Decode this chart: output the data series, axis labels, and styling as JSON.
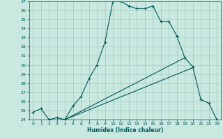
{
  "xlabel": "Humidex (Indice chaleur)",
  "background_color": "#c8e8e0",
  "grid_color": "#a0c8c0",
  "line_color": "#005858",
  "xlim": [
    -0.5,
    23.5
  ],
  "ylim": [
    24,
    37
  ],
  "xticks": [
    0,
    1,
    2,
    3,
    4,
    5,
    6,
    7,
    8,
    9,
    10,
    11,
    12,
    13,
    14,
    15,
    16,
    17,
    18,
    19,
    20,
    21,
    22,
    23
  ],
  "yticks": [
    24,
    25,
    26,
    27,
    28,
    29,
    30,
    31,
    32,
    33,
    34,
    35,
    36,
    37
  ],
  "main_curve_x": [
    0,
    1,
    2,
    3,
    4,
    5,
    6,
    7,
    8,
    9,
    10,
    11,
    12,
    13,
    14,
    15,
    16,
    17,
    18,
    19,
    20,
    21,
    22,
    23
  ],
  "main_curve_y": [
    24.8,
    25.2,
    24.0,
    24.2,
    24.0,
    25.5,
    26.5,
    28.5,
    30.0,
    32.5,
    37.0,
    37.0,
    36.5,
    36.2,
    36.2,
    36.5,
    34.8,
    34.8,
    33.2,
    30.8,
    29.8,
    26.2,
    25.8,
    24.0
  ],
  "diag_line1_x": [
    4,
    19
  ],
  "diag_line1_y": [
    24.0,
    30.8
  ],
  "diag_line2_x": [
    4,
    20
  ],
  "diag_line2_y": [
    24.0,
    29.7
  ],
  "flat_line_x": [
    0,
    23
  ],
  "flat_line_y": [
    24.0,
    24.0
  ],
  "marker_style": "+"
}
